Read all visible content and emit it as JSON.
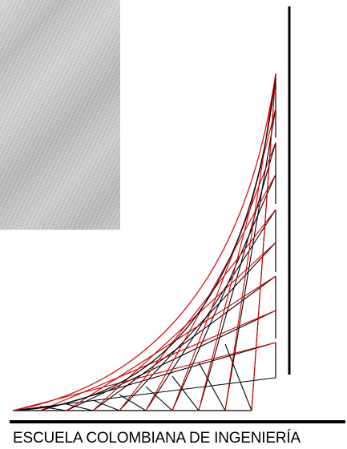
{
  "footer": {
    "institution": "ESCUELA COLOMBIANA DE INGENIERÍA"
  },
  "colors": {
    "black_lines": "#000000",
    "red_lines": "#d40000",
    "photo_tone": "#c4c4c4"
  }
}
